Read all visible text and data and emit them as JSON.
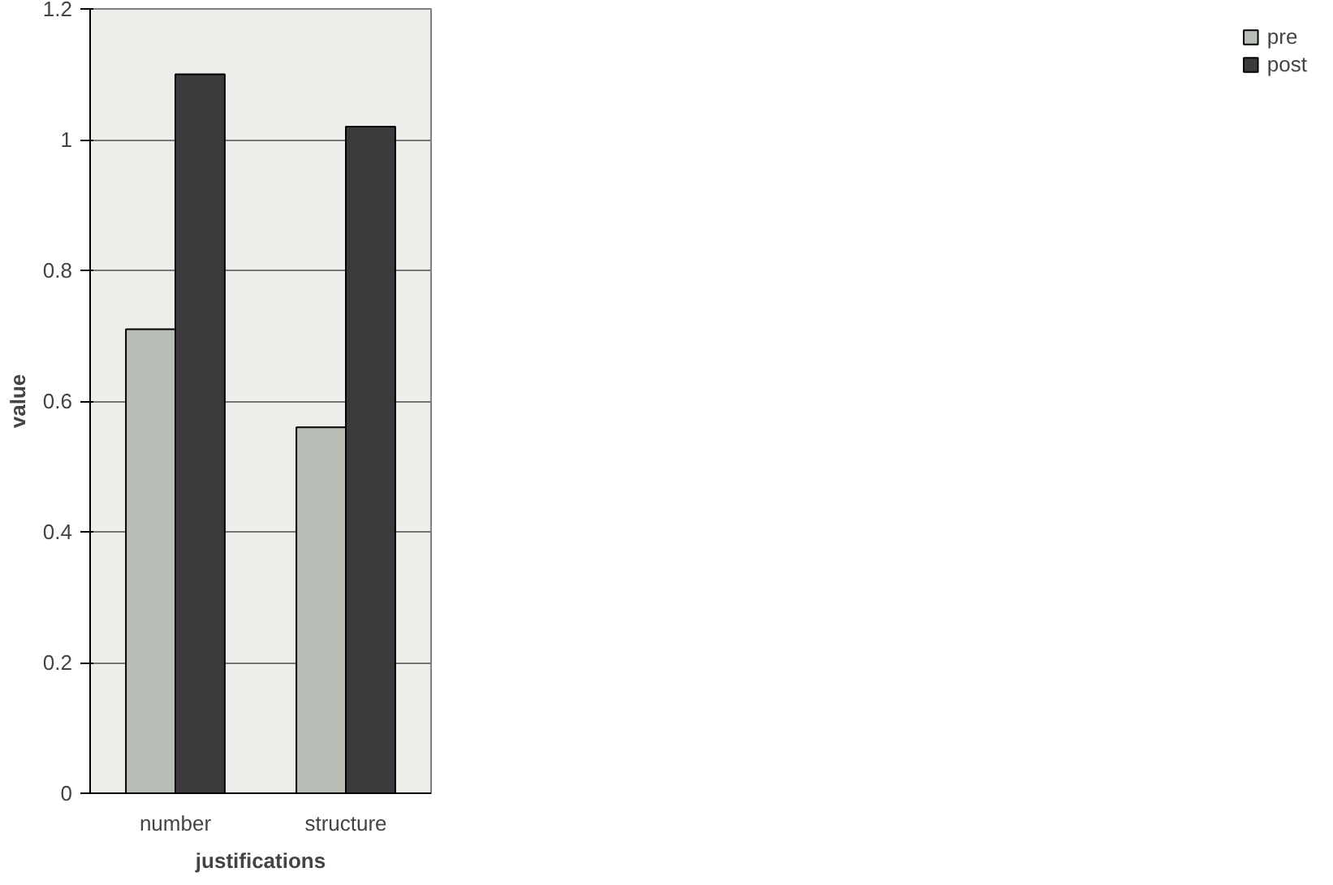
{
  "chart_data": {
    "type": "bar",
    "xlabel": "justifications",
    "ylabel": "value",
    "categories": [
      "number",
      "structure"
    ],
    "series": [
      {
        "name": "pre",
        "color": "#b9bfb7",
        "values": [
          0.71,
          0.56
        ]
      },
      {
        "name": "post",
        "color": "#3d3a3e",
        "values": [
          1.1,
          1.02
        ]
      }
    ],
    "ylim": [
      0,
      1.2
    ],
    "yticks": [
      0,
      0.2,
      0.4,
      0.6,
      0.8,
      1,
      1.2
    ],
    "grid": "y",
    "legend": "right"
  }
}
